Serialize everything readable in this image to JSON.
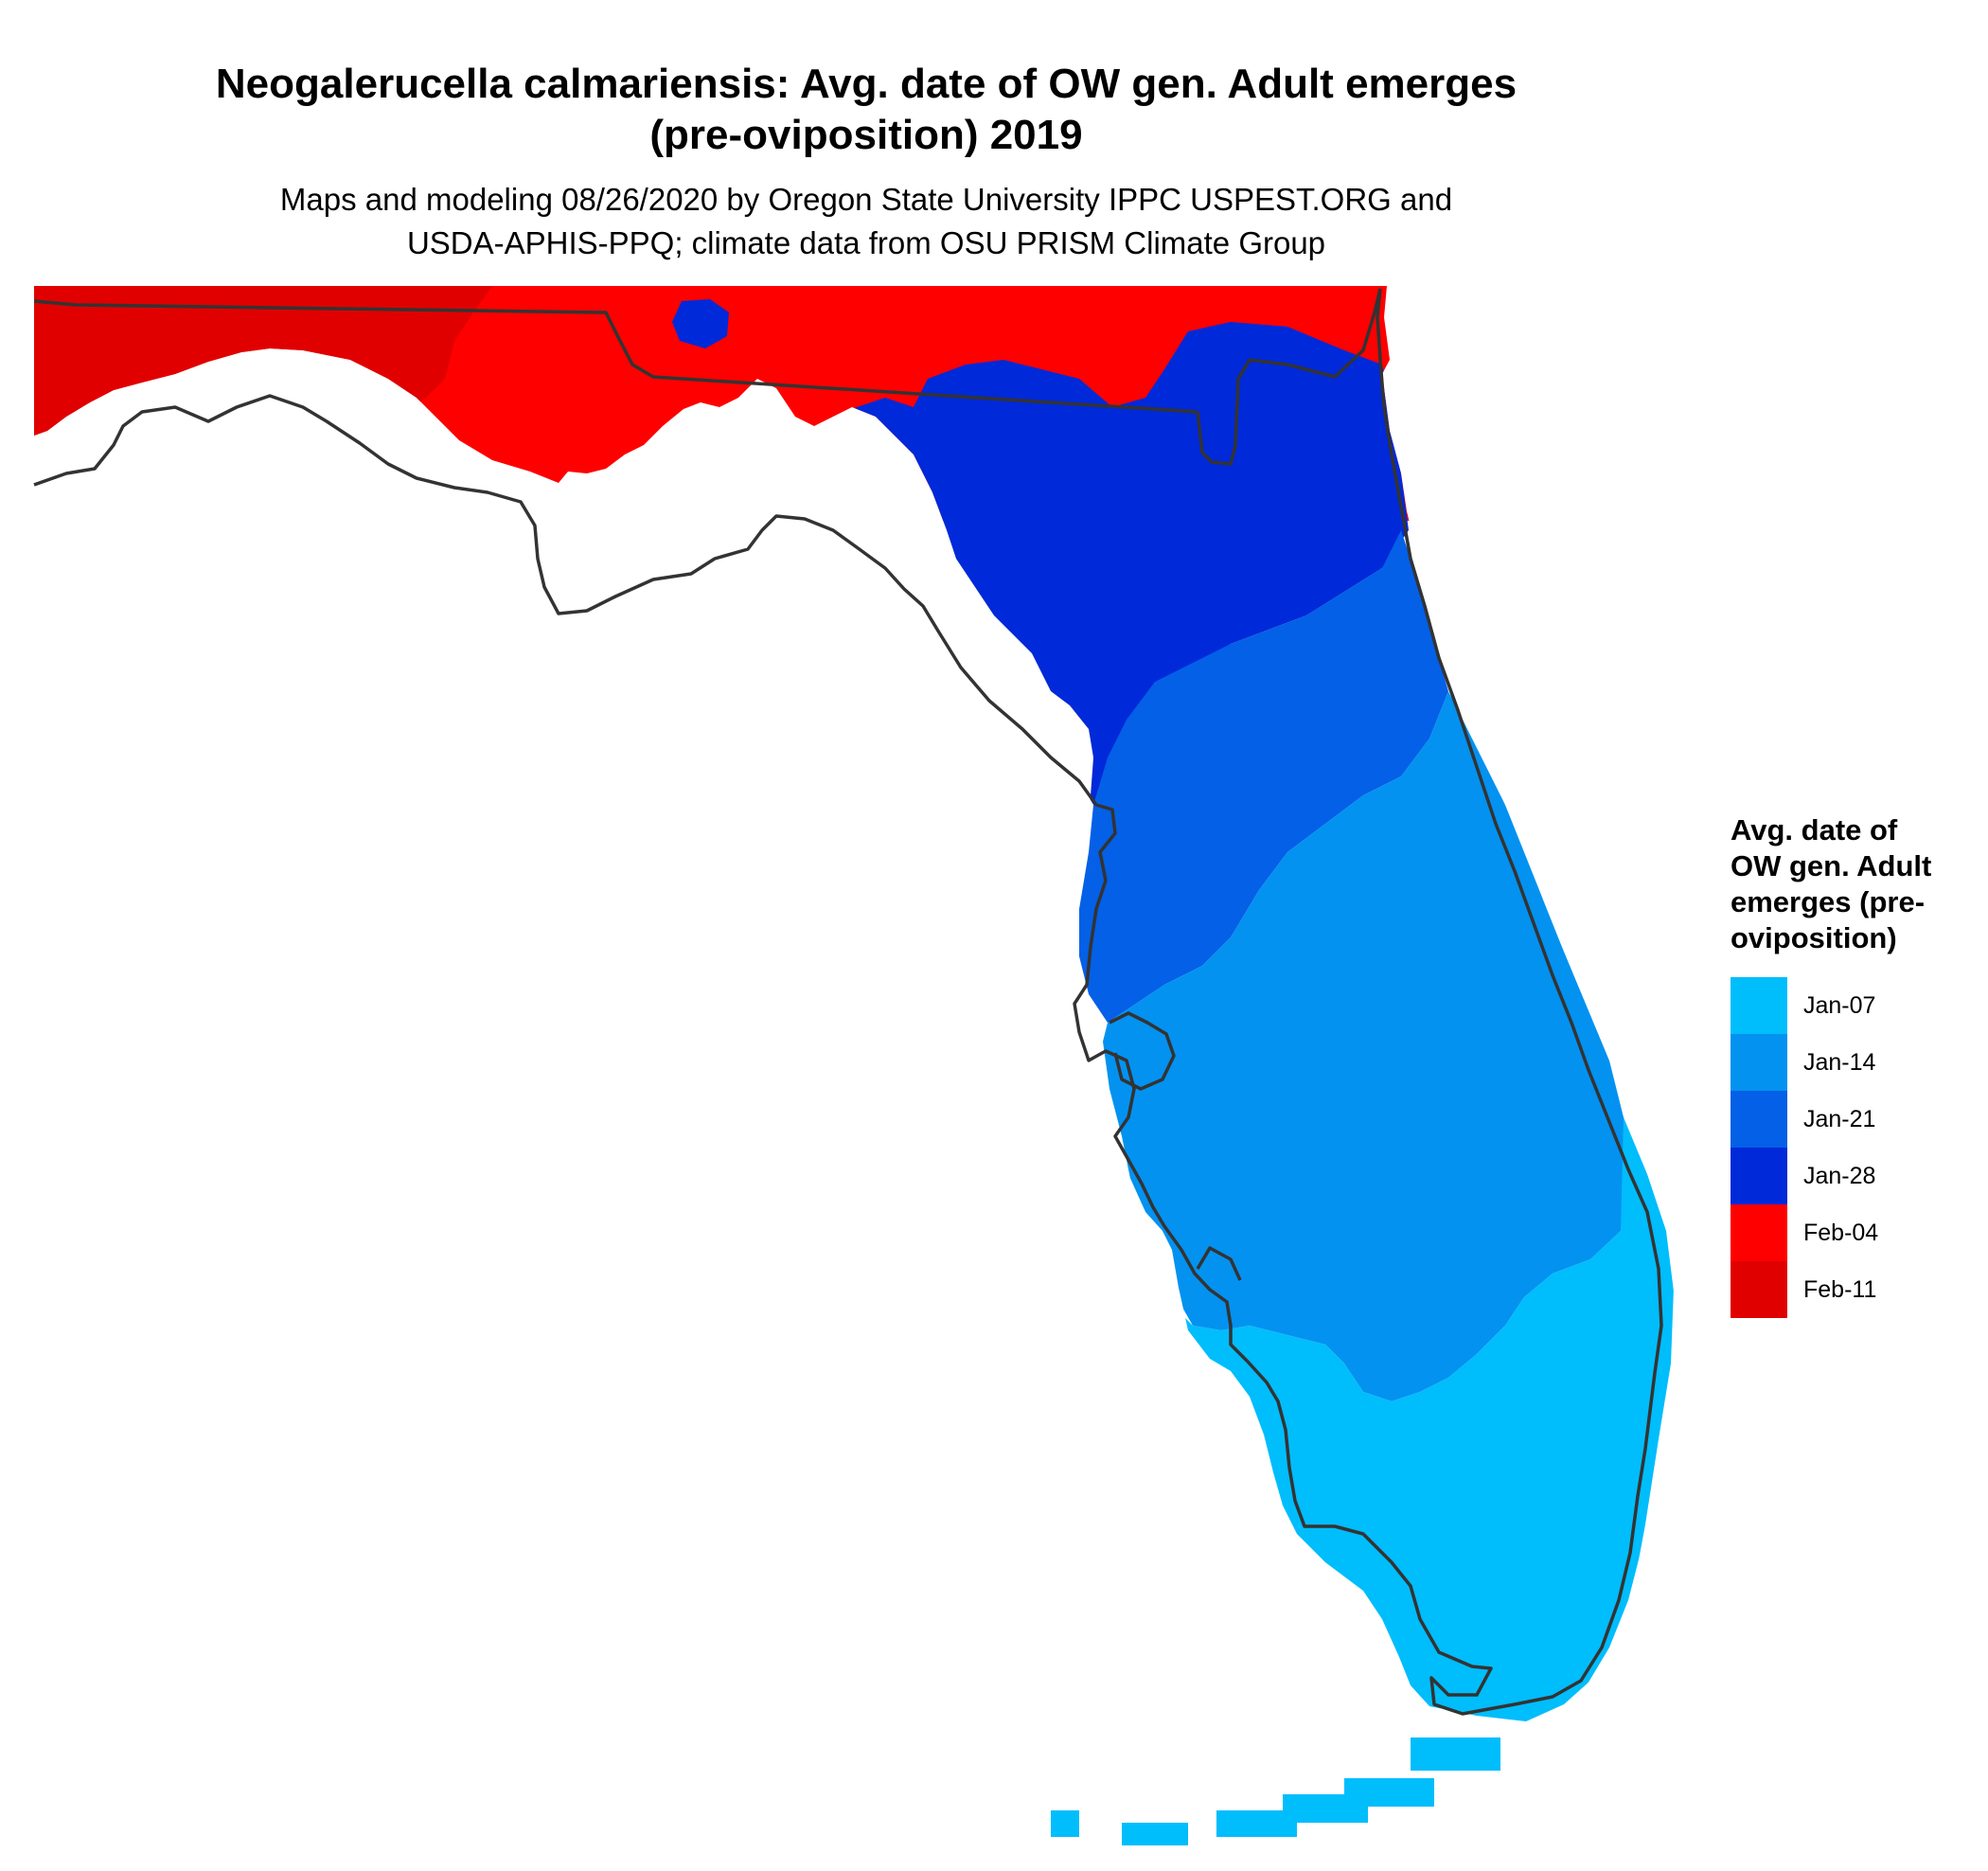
{
  "title": {
    "line1": "Neogalerucella calmariensis: Avg. date of OW gen. Adult emerges",
    "line2": "(pre-oviposition) 2019"
  },
  "subtitle": {
    "line1": "Maps and modeling 08/26/2020 by Oregon State University IPPC USPEST.ORG and",
    "line2": "USDA-APHIS-PPQ; climate data from OSU PRISM Climate Group"
  },
  "legend": {
    "title_lines": [
      "Avg. date of",
      "OW gen. Adult",
      "emerges (pre-",
      "oviposition)"
    ],
    "items": [
      {
        "label": "Jan-07",
        "color": "#00bdfc"
      },
      {
        "label": "Jan-14",
        "color": "#0392f0"
      },
      {
        "label": "Jan-21",
        "color": "#0460e6"
      },
      {
        "label": "Jan-28",
        "color": "#0029d9"
      },
      {
        "label": "Feb-04",
        "color": "#fe0000"
      },
      {
        "label": "Feb-11",
        "color": "#e00000"
      }
    ]
  },
  "map": {
    "region": "Florida",
    "outline_color": "#333333"
  }
}
